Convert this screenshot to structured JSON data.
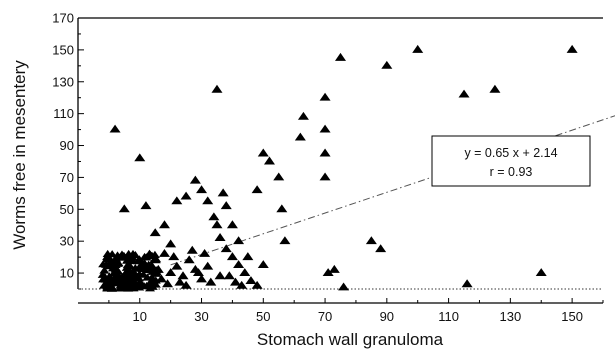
{
  "chart_data": {
    "type": "scatter",
    "xlabel": "Stomach wall granuloma",
    "ylabel": "Worms free in mesentery",
    "xlim": [
      -10,
      160
    ],
    "ylim": [
      0,
      170
    ],
    "x_ticks": [
      10,
      30,
      50,
      70,
      90,
      110,
      130,
      150
    ],
    "y_ticks": [
      10,
      30,
      50,
      70,
      90,
      110,
      130,
      150,
      170
    ],
    "marker": "triangle",
    "grid": false,
    "regression": {
      "slope": 0.65,
      "intercept": 2.14,
      "equation": "y = 0.65 x + 2.14",
      "r_text": "r = 0.93"
    },
    "baseline_y": 0,
    "points": [
      [
        2,
        100
      ],
      [
        10,
        82
      ],
      [
        12,
        52
      ],
      [
        5,
        50
      ],
      [
        15,
        35
      ],
      [
        18,
        40
      ],
      [
        20,
        28
      ],
      [
        22,
        55
      ],
      [
        25,
        58
      ],
      [
        28,
        68
      ],
      [
        30,
        62
      ],
      [
        32,
        55
      ],
      [
        34,
        45
      ],
      [
        35,
        40
      ],
      [
        36,
        32
      ],
      [
        38,
        25
      ],
      [
        40,
        20
      ],
      [
        42,
        15
      ],
      [
        44,
        10
      ],
      [
        46,
        5
      ],
      [
        35,
        125
      ],
      [
        37,
        60
      ],
      [
        38,
        52
      ],
      [
        40,
        40
      ],
      [
        42,
        30
      ],
      [
        45,
        20
      ],
      [
        48,
        62
      ],
      [
        50,
        85
      ],
      [
        52,
        80
      ],
      [
        55,
        70
      ],
      [
        56,
        50
      ],
      [
        57,
        30
      ],
      [
        50,
        15
      ],
      [
        48,
        2
      ],
      [
        62,
        95
      ],
      [
        63,
        108
      ],
      [
        70,
        120
      ],
      [
        70,
        100
      ],
      [
        70,
        85
      ],
      [
        70,
        70
      ],
      [
        71,
        10
      ],
      [
        73,
        12
      ],
      [
        75,
        145
      ],
      [
        76,
        1
      ],
      [
        85,
        30
      ],
      [
        88,
        25
      ],
      [
        90,
        140
      ],
      [
        100,
        150
      ],
      [
        115,
        122
      ],
      [
        116,
        3
      ],
      [
        125,
        125
      ],
      [
        140,
        10
      ],
      [
        150,
        150
      ],
      [
        20,
        10
      ],
      [
        22,
        14
      ],
      [
        24,
        8
      ],
      [
        26,
        18
      ],
      [
        28,
        12
      ],
      [
        30,
        6
      ],
      [
        32,
        14
      ],
      [
        21,
        20
      ],
      [
        23,
        4
      ],
      [
        27,
        24
      ],
      [
        29,
        10
      ],
      [
        31,
        22
      ],
      [
        33,
        4
      ],
      [
        25,
        2
      ],
      [
        19,
        3
      ],
      [
        18,
        22
      ],
      [
        17,
        6
      ],
      [
        16,
        12
      ],
      [
        15,
        18
      ],
      [
        14,
        4
      ],
      [
        39,
        8
      ],
      [
        41,
        4
      ],
      [
        43,
        2
      ],
      [
        36,
        8
      ]
    ],
    "cluster": {
      "x_range": [
        -2,
        16
      ],
      "y_range": [
        0,
        22
      ],
      "count": 170
    }
  }
}
